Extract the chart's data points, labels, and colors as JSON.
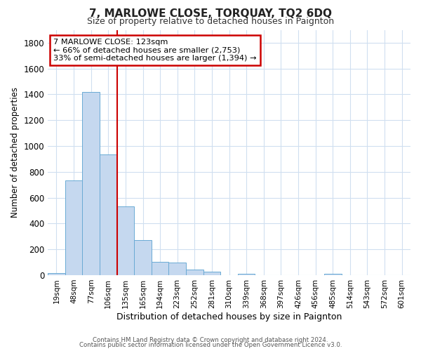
{
  "title": "7, MARLOWE CLOSE, TORQUAY, TQ2 6DQ",
  "subtitle": "Size of property relative to detached houses in Paignton",
  "xlabel": "Distribution of detached houses by size in Paignton",
  "ylabel": "Number of detached properties",
  "bar_color": "#c5d8ef",
  "bar_edge_color": "#6aaad4",
  "background_color": "#ffffff",
  "grid_color": "#d0dff0",
  "categories": [
    "19sqm",
    "48sqm",
    "77sqm",
    "106sqm",
    "135sqm",
    "165sqm",
    "194sqm",
    "223sqm",
    "252sqm",
    "281sqm",
    "310sqm",
    "339sqm",
    "368sqm",
    "397sqm",
    "426sqm",
    "456sqm",
    "485sqm",
    "514sqm",
    "543sqm",
    "572sqm",
    "601sqm"
  ],
  "values": [
    18,
    735,
    1420,
    935,
    530,
    270,
    105,
    95,
    45,
    25,
    0,
    12,
    0,
    0,
    0,
    0,
    10,
    0,
    0,
    0,
    0
  ],
  "ylim": [
    0,
    1900
  ],
  "yticks": [
    0,
    200,
    400,
    600,
    800,
    1000,
    1200,
    1400,
    1600,
    1800
  ],
  "property_line_color": "#cc0000",
  "property_line_x": 3.5,
  "annotation_title": "7 MARLOWE CLOSE: 123sqm",
  "annotation_line1": "← 66% of detached houses are smaller (2,753)",
  "annotation_line2": "33% of semi-detached houses are larger (1,394) →",
  "annotation_box_color": "#ffffff",
  "annotation_box_edge_color": "#cc0000",
  "footer_line1": "Contains HM Land Registry data © Crown copyright and database right 2024.",
  "footer_line2": "Contains public sector information licensed under the Open Government Licence v3.0."
}
